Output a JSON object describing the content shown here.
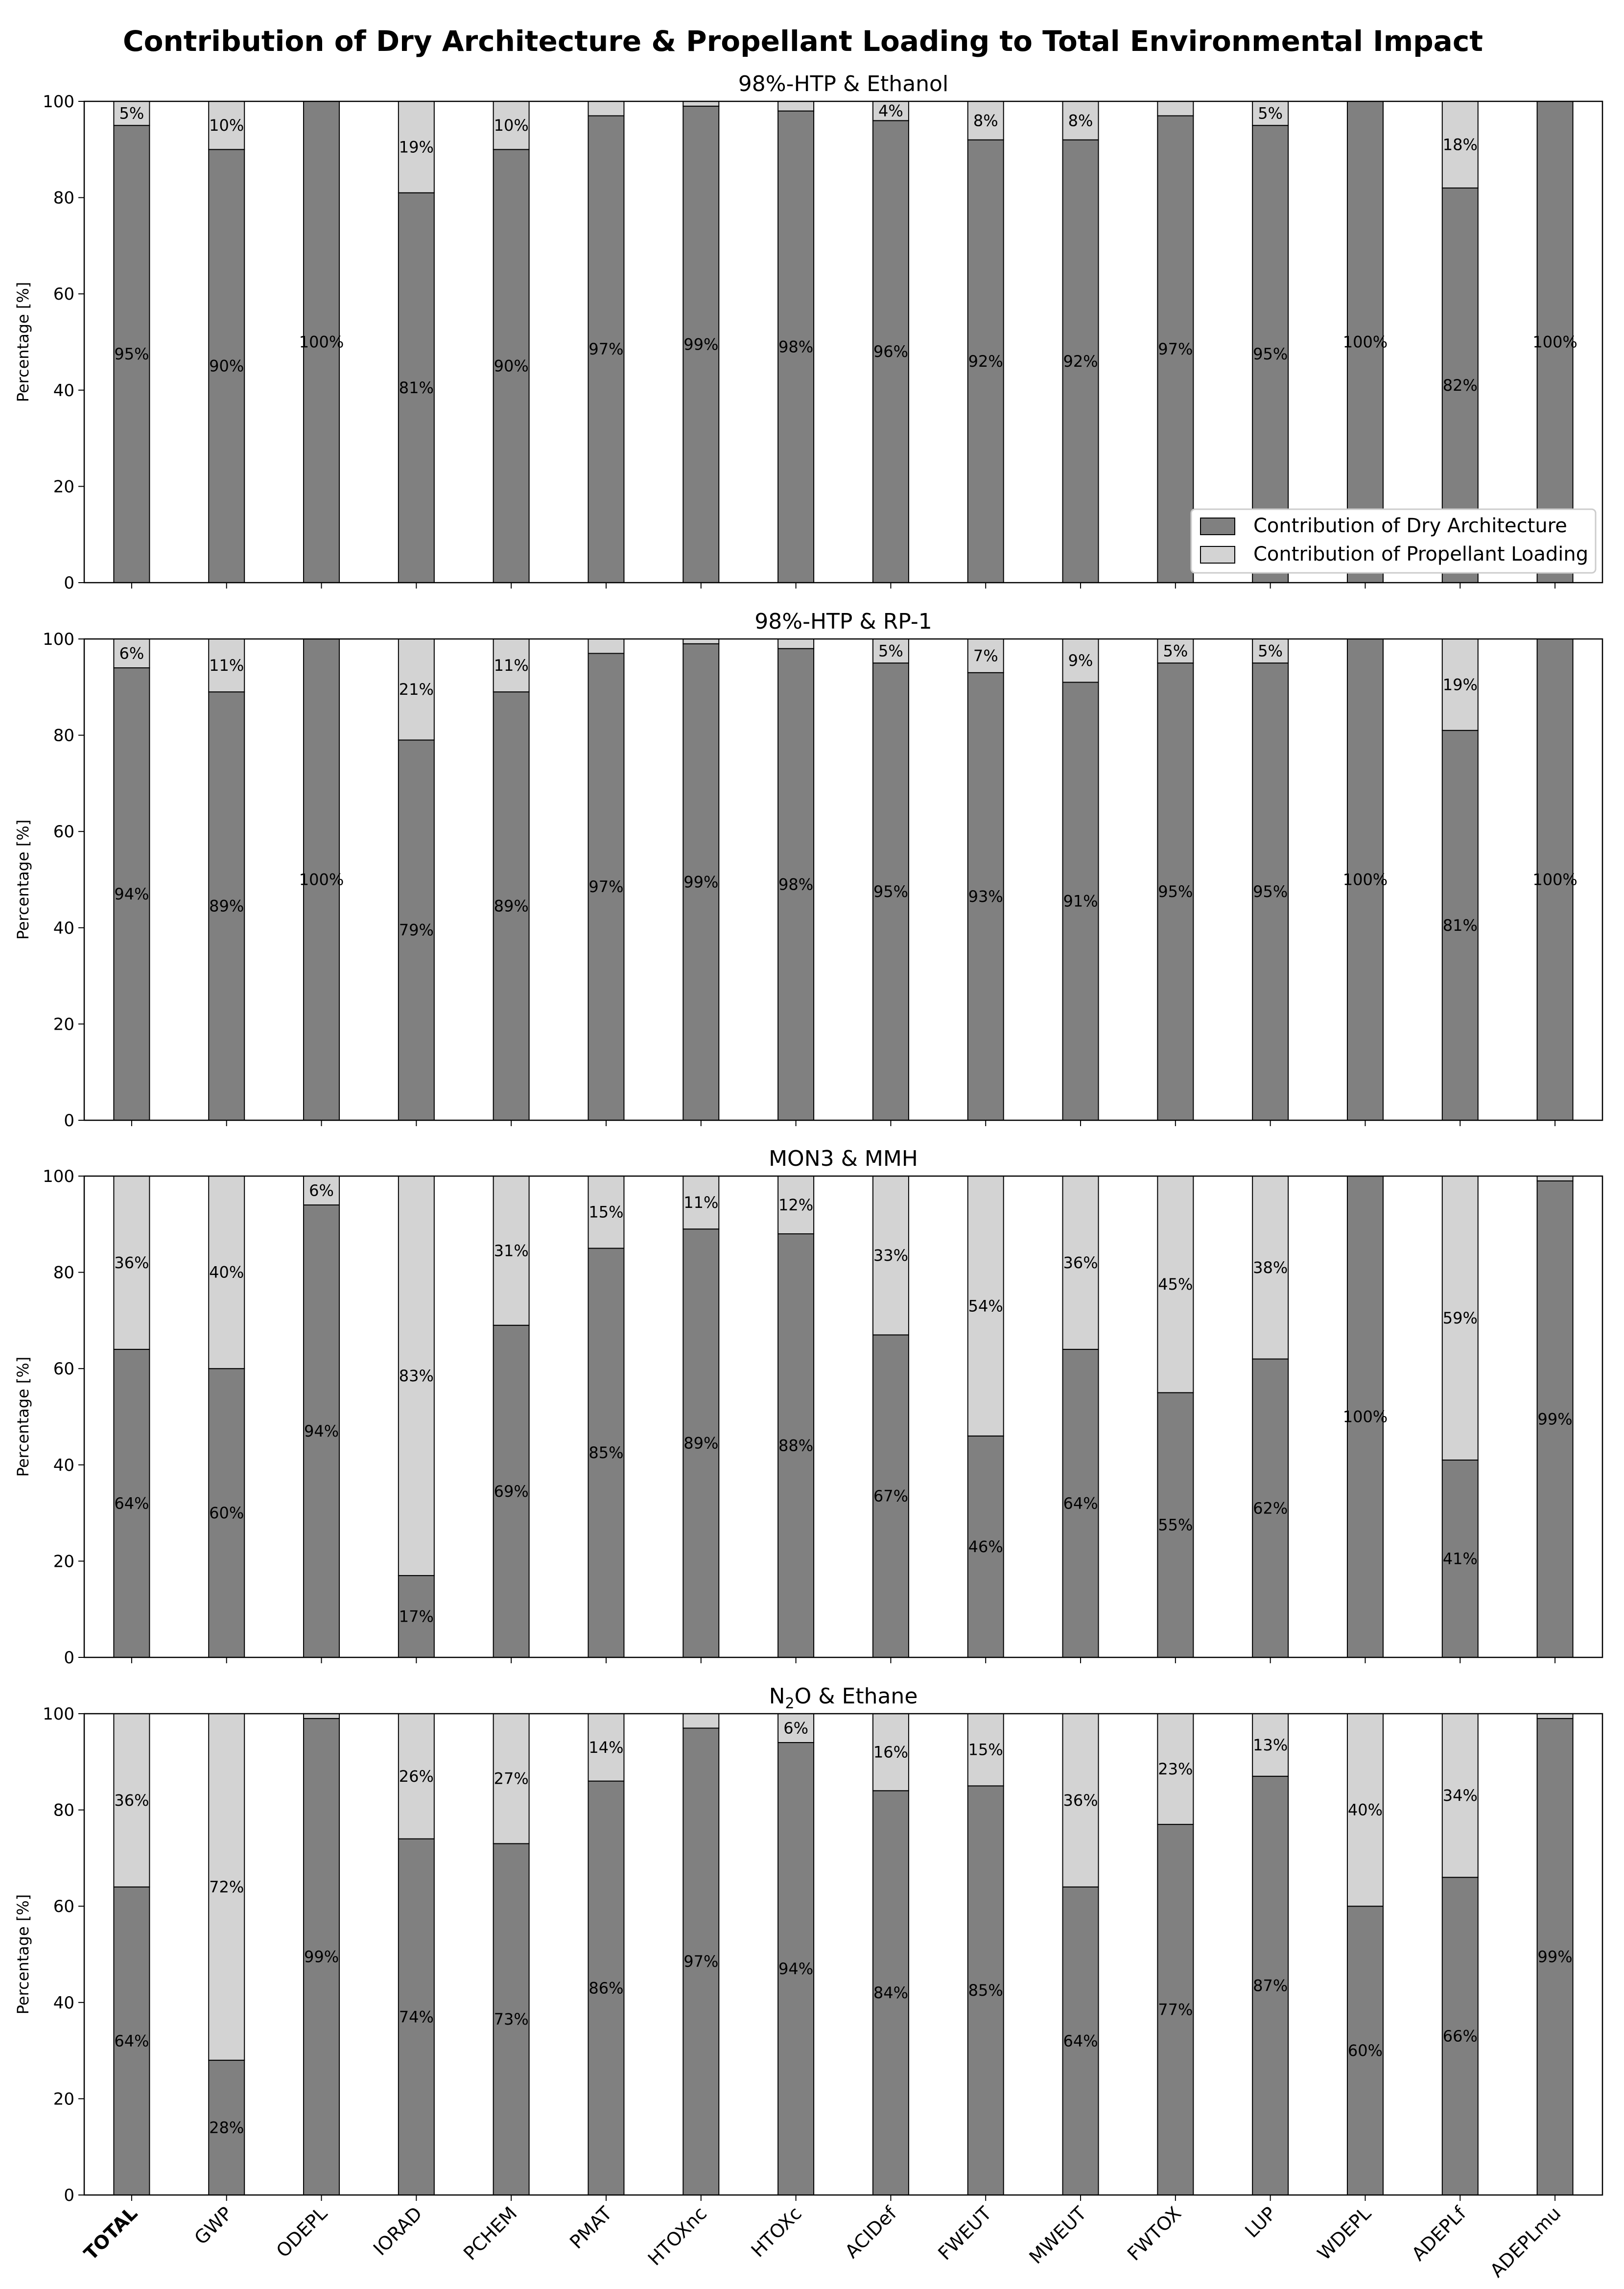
{
  "suptitle": "Contribution of Dry Architecture & Propellant Loading to Total Environmental Impact",
  "colors": {
    "dry": "#808080",
    "prop": "#d3d3d3",
    "edge": "#000000"
  },
  "legend": {
    "location": "lower right of first panel",
    "entries": [
      "Contribution of Dry Architecture",
      "Contribution of Propellant Loading"
    ]
  },
  "chart_data": [
    {
      "type": "bar",
      "stacked": true,
      "title": "98%-HTP & Ethanol",
      "ylabel": "Percentage [%]",
      "ylim": [
        0,
        100
      ],
      "yticks": [
        0,
        20,
        40,
        60,
        80,
        100
      ],
      "categories": [
        "TOTAL",
        "GWP",
        "ODEPL",
        "IORAD",
        "PCHEM",
        "PMAT",
        "HTOXnc",
        "HTOXc",
        "ACIDef",
        "FWEUT",
        "MWEUT",
        "FWTOX",
        "LUP",
        "WDEPL",
        "ADEPLf",
        "ADEPLmu"
      ],
      "series": [
        {
          "name": "Contribution of Dry Architecture",
          "values": [
            95,
            90,
            100,
            81,
            90,
            97,
            99,
            98,
            96,
            92,
            92,
            97,
            95,
            100,
            82,
            100
          ]
        },
        {
          "name": "Contribution of Propellant Loading",
          "values": [
            5,
            10,
            0,
            19,
            10,
            3,
            1,
            2,
            4,
            8,
            8,
            3,
            5,
            0,
            18,
            0
          ]
        }
      ],
      "labels_dry": [
        "95%",
        "90%",
        "100%",
        "81%",
        "90%",
        "97%",
        "99%",
        "98%",
        "96%",
        "92%",
        "92%",
        "97%",
        "95%",
        "100%",
        "82%",
        "100%"
      ],
      "labels_prop": [
        "5%",
        "10%",
        "",
        "19%",
        "10%",
        "",
        "",
        "",
        "4%",
        "8%",
        "8%",
        "",
        "5%",
        "",
        "18%",
        ""
      ]
    },
    {
      "type": "bar",
      "stacked": true,
      "title": "98%-HTP & RP-1",
      "ylabel": "Percentage [%]",
      "ylim": [
        0,
        100
      ],
      "yticks": [
        0,
        20,
        40,
        60,
        80,
        100
      ],
      "categories": [
        "TOTAL",
        "GWP",
        "ODEPL",
        "IORAD",
        "PCHEM",
        "PMAT",
        "HTOXnc",
        "HTOXc",
        "ACIDef",
        "FWEUT",
        "MWEUT",
        "FWTOX",
        "LUP",
        "WDEPL",
        "ADEPLf",
        "ADEPLmu"
      ],
      "series": [
        {
          "name": "Contribution of Dry Architecture",
          "values": [
            94,
            89,
            100,
            79,
            89,
            97,
            99,
            98,
            95,
            93,
            91,
            95,
            95,
            100,
            81,
            100
          ]
        },
        {
          "name": "Contribution of Propellant Loading",
          "values": [
            6,
            11,
            0,
            21,
            11,
            3,
            1,
            2,
            5,
            7,
            9,
            5,
            5,
            0,
            19,
            0
          ]
        }
      ],
      "labels_dry": [
        "94%",
        "89%",
        "100%",
        "79%",
        "89%",
        "97%",
        "99%",
        "98%",
        "95%",
        "93%",
        "91%",
        "95%",
        "95%",
        "100%",
        "81%",
        "100%"
      ],
      "labels_prop": [
        "6%",
        "11%",
        "",
        "21%",
        "11%",
        "",
        "",
        "",
        "5%",
        "7%",
        "9%",
        "5%",
        "5%",
        "",
        "19%",
        ""
      ]
    },
    {
      "type": "bar",
      "stacked": true,
      "title": "MON3 & MMH",
      "ylabel": "Percentage [%]",
      "ylim": [
        0,
        100
      ],
      "yticks": [
        0,
        20,
        40,
        60,
        80,
        100
      ],
      "categories": [
        "TOTAL",
        "GWP",
        "ODEPL",
        "IORAD",
        "PCHEM",
        "PMAT",
        "HTOXnc",
        "HTOXc",
        "ACIDef",
        "FWEUT",
        "MWEUT",
        "FWTOX",
        "LUP",
        "WDEPL",
        "ADEPLf",
        "ADEPLmu"
      ],
      "series": [
        {
          "name": "Contribution of Dry Architecture",
          "values": [
            64,
            60,
            94,
            17,
            69,
            85,
            89,
            88,
            67,
            46,
            64,
            55,
            62,
            100,
            41,
            99
          ]
        },
        {
          "name": "Contribution of Propellant Loading",
          "values": [
            36,
            40,
            6,
            83,
            31,
            15,
            11,
            12,
            33,
            54,
            36,
            45,
            38,
            0,
            59,
            1
          ]
        }
      ],
      "labels_dry": [
        "64%",
        "60%",
        "94%",
        "17%",
        "69%",
        "85%",
        "89%",
        "88%",
        "67%",
        "46%",
        "64%",
        "55%",
        "62%",
        "100%",
        "41%",
        "99%"
      ],
      "labels_prop": [
        "36%",
        "40%",
        "6%",
        "83%",
        "31%",
        "15%",
        "11%",
        "12%",
        "33%",
        "54%",
        "36%",
        "45%",
        "38%",
        "",
        "59%",
        ""
      ]
    },
    {
      "type": "bar",
      "stacked": true,
      "title": "N2O & Ethane",
      "title_parts": [
        "N",
        "2",
        "O & Ethane"
      ],
      "ylabel": "Percentage [%]",
      "ylim": [
        0,
        100
      ],
      "yticks": [
        0,
        20,
        40,
        60,
        80,
        100
      ],
      "categories": [
        "TOTAL",
        "GWP",
        "ODEPL",
        "IORAD",
        "PCHEM",
        "PMAT",
        "HTOXnc",
        "HTOXc",
        "ACIDef",
        "FWEUT",
        "MWEUT",
        "FWTOX",
        "LUP",
        "WDEPL",
        "ADEPLf",
        "ADEPLmu"
      ],
      "series": [
        {
          "name": "Contribution of Dry Architecture",
          "values": [
            64,
            28,
            99,
            74,
            73,
            86,
            97,
            94,
            84,
            85,
            64,
            77,
            87,
            60,
            66,
            99
          ]
        },
        {
          "name": "Contribution of Propellant Loading",
          "values": [
            36,
            72,
            1,
            26,
            27,
            14,
            3,
            6,
            16,
            15,
            36,
            23,
            13,
            40,
            34,
            1
          ]
        }
      ],
      "labels_dry": [
        "64%",
        "28%",
        "99%",
        "74%",
        "73%",
        "86%",
        "97%",
        "94%",
        "84%",
        "85%",
        "64%",
        "77%",
        "87%",
        "60%",
        "66%",
        "99%"
      ],
      "labels_prop": [
        "36%",
        "72%",
        "",
        "26%",
        "27%",
        "14%",
        "",
        "6%",
        "16%",
        "15%",
        "36%",
        "23%",
        "13%",
        "40%",
        "34%",
        ""
      ]
    }
  ]
}
